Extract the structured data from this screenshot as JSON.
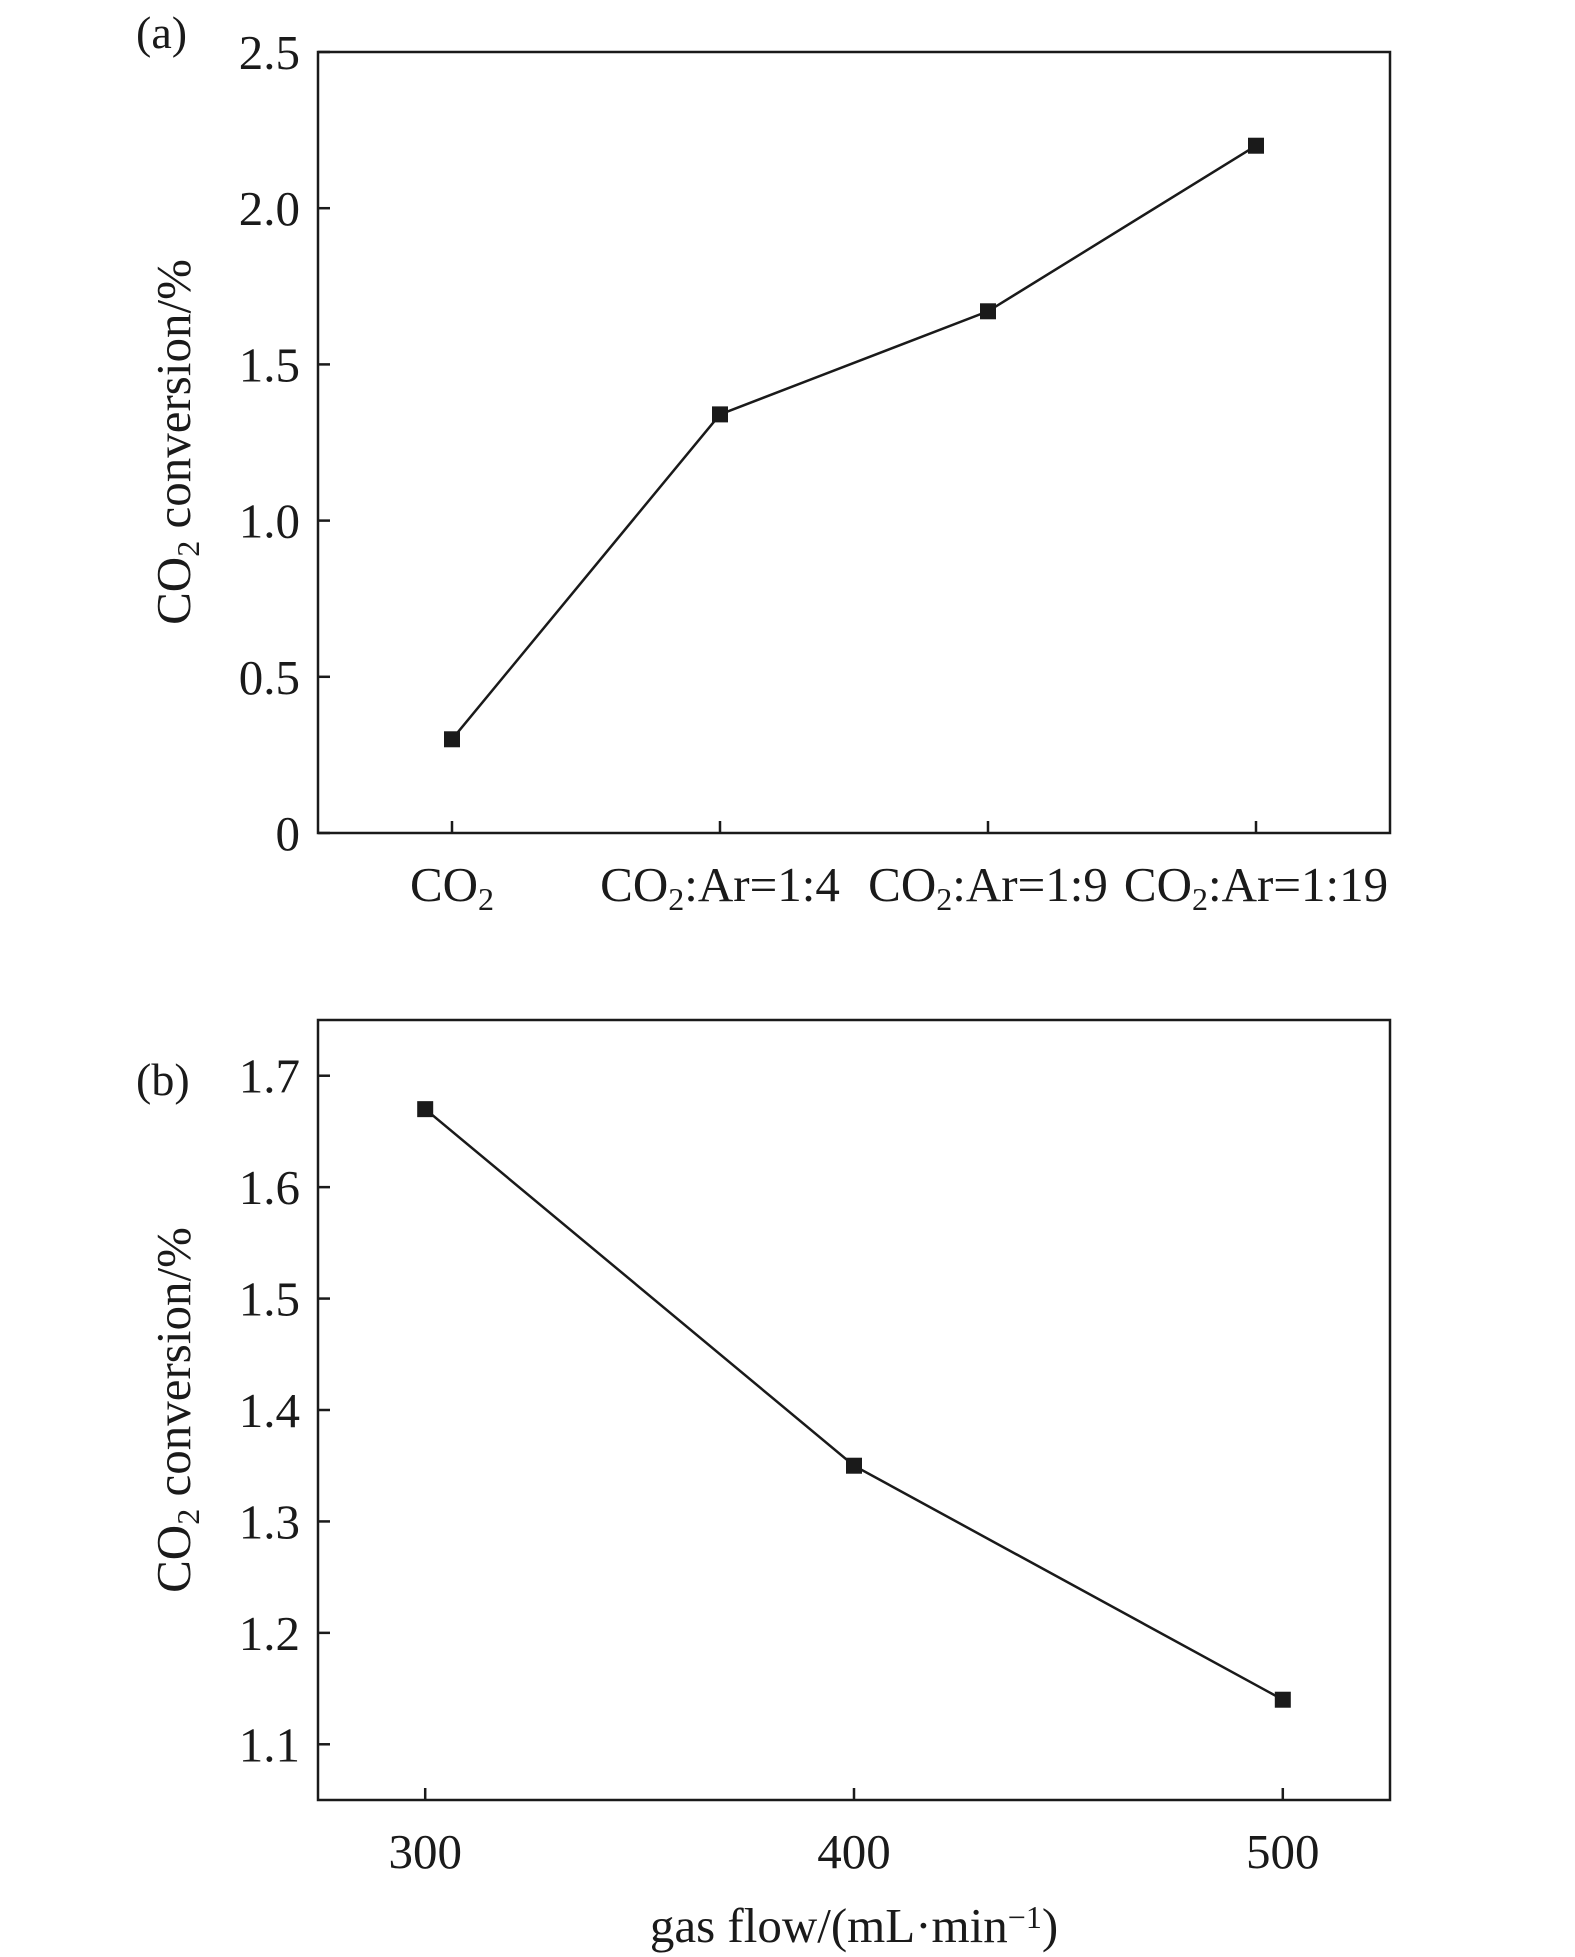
{
  "chart_data": [
    {
      "type": "line",
      "panel_label": "(a)",
      "categories": [
        "CO2",
        "CO2:Ar=1:4",
        "CO2:Ar=1:9",
        "CO2:Ar=1:19"
      ],
      "category_labels": [
        {
          "parts": [
            [
              "CO",
              ""
            ],
            [
              "2",
              "sub"
            ]
          ]
        },
        {
          "parts": [
            [
              "CO",
              ""
            ],
            [
              "2",
              "sub"
            ],
            [
              ":Ar=1:4",
              ""
            ]
          ]
        },
        {
          "parts": [
            [
              "CO",
              ""
            ],
            [
              "2",
              "sub"
            ],
            [
              ":Ar=1:9",
              ""
            ]
          ]
        },
        {
          "parts": [
            [
              "CO",
              ""
            ],
            [
              "2",
              "sub"
            ],
            [
              ":Ar=1:19",
              ""
            ]
          ]
        }
      ],
      "values": [
        0.3,
        1.34,
        1.67,
        2.2
      ],
      "ylabel": {
        "parts": [
          [
            "CO",
            ""
          ],
          [
            "2",
            "sub"
          ],
          [
            " conversion/%",
            ""
          ]
        ]
      },
      "ylim": [
        0,
        2.5
      ],
      "yticks": [
        0,
        0.5,
        1.0,
        1.5,
        2.0,
        2.5
      ],
      "ytick_labels": [
        "0",
        "0.5",
        "1.0",
        "1.5",
        "2.0",
        "2.5"
      ],
      "marker": "square",
      "grid": false
    },
    {
      "type": "line",
      "panel_label": "(b)",
      "x": [
        300,
        400,
        500
      ],
      "values": [
        1.67,
        1.35,
        1.14
      ],
      "xlabel": {
        "parts": [
          [
            "gas flow/(mL·min",
            ""
          ],
          [
            "−1",
            "sup"
          ],
          [
            ")",
            ""
          ]
        ]
      },
      "ylabel": {
        "parts": [
          [
            "CO",
            ""
          ],
          [
            "2",
            "sub"
          ],
          [
            " conversion/%",
            ""
          ]
        ]
      },
      "xlim": [
        275,
        525
      ],
      "xticks": [
        300,
        400,
        500
      ],
      "xtick_labels": [
        "300",
        "400",
        "500"
      ],
      "ylim": [
        1.05,
        1.75
      ],
      "yticks": [
        1.1,
        1.2,
        1.3,
        1.4,
        1.5,
        1.6,
        1.7
      ],
      "ytick_labels": [
        "1.1",
        "1.2",
        "1.3",
        "1.4",
        "1.5",
        "1.6",
        "1.7"
      ],
      "marker": "square",
      "grid": false
    }
  ]
}
